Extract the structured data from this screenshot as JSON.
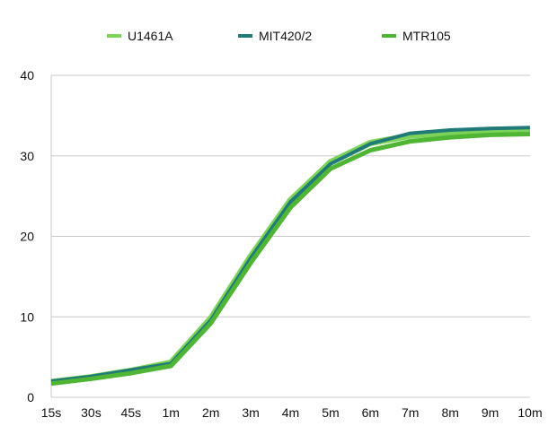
{
  "chart_data": {
    "type": "line",
    "title": "",
    "xlabel": "",
    "ylabel": "",
    "categories": [
      "15s",
      "30s",
      "45s",
      "1m",
      "2m",
      "3m",
      "4m",
      "5m",
      "6m",
      "7m",
      "8m",
      "9m",
      "10m"
    ],
    "ylim": [
      0,
      40
    ],
    "yticks": [
      0,
      10,
      20,
      30,
      40
    ],
    "grid": true,
    "legend_position": "top",
    "series": [
      {
        "name": "U1461A",
        "color": "#7dd35a",
        "values": [
          1.9,
          2.5,
          3.3,
          4.3,
          9.8,
          17.5,
          24.5,
          29.2,
          31.6,
          32.5,
          32.9,
          33.1,
          33.1
        ]
      },
      {
        "name": "MIT420/2",
        "color": "#1f7a78",
        "values": [
          2.0,
          2.6,
          3.4,
          4.2,
          9.6,
          17.3,
          24.3,
          29.0,
          31.5,
          32.8,
          33.2,
          33.4,
          33.5
        ]
      },
      {
        "name": "MTR105",
        "color": "#4fb534",
        "values": [
          1.7,
          2.3,
          3.0,
          3.9,
          9.2,
          16.7,
          23.6,
          28.4,
          30.7,
          31.8,
          32.3,
          32.6,
          32.7
        ]
      }
    ]
  }
}
